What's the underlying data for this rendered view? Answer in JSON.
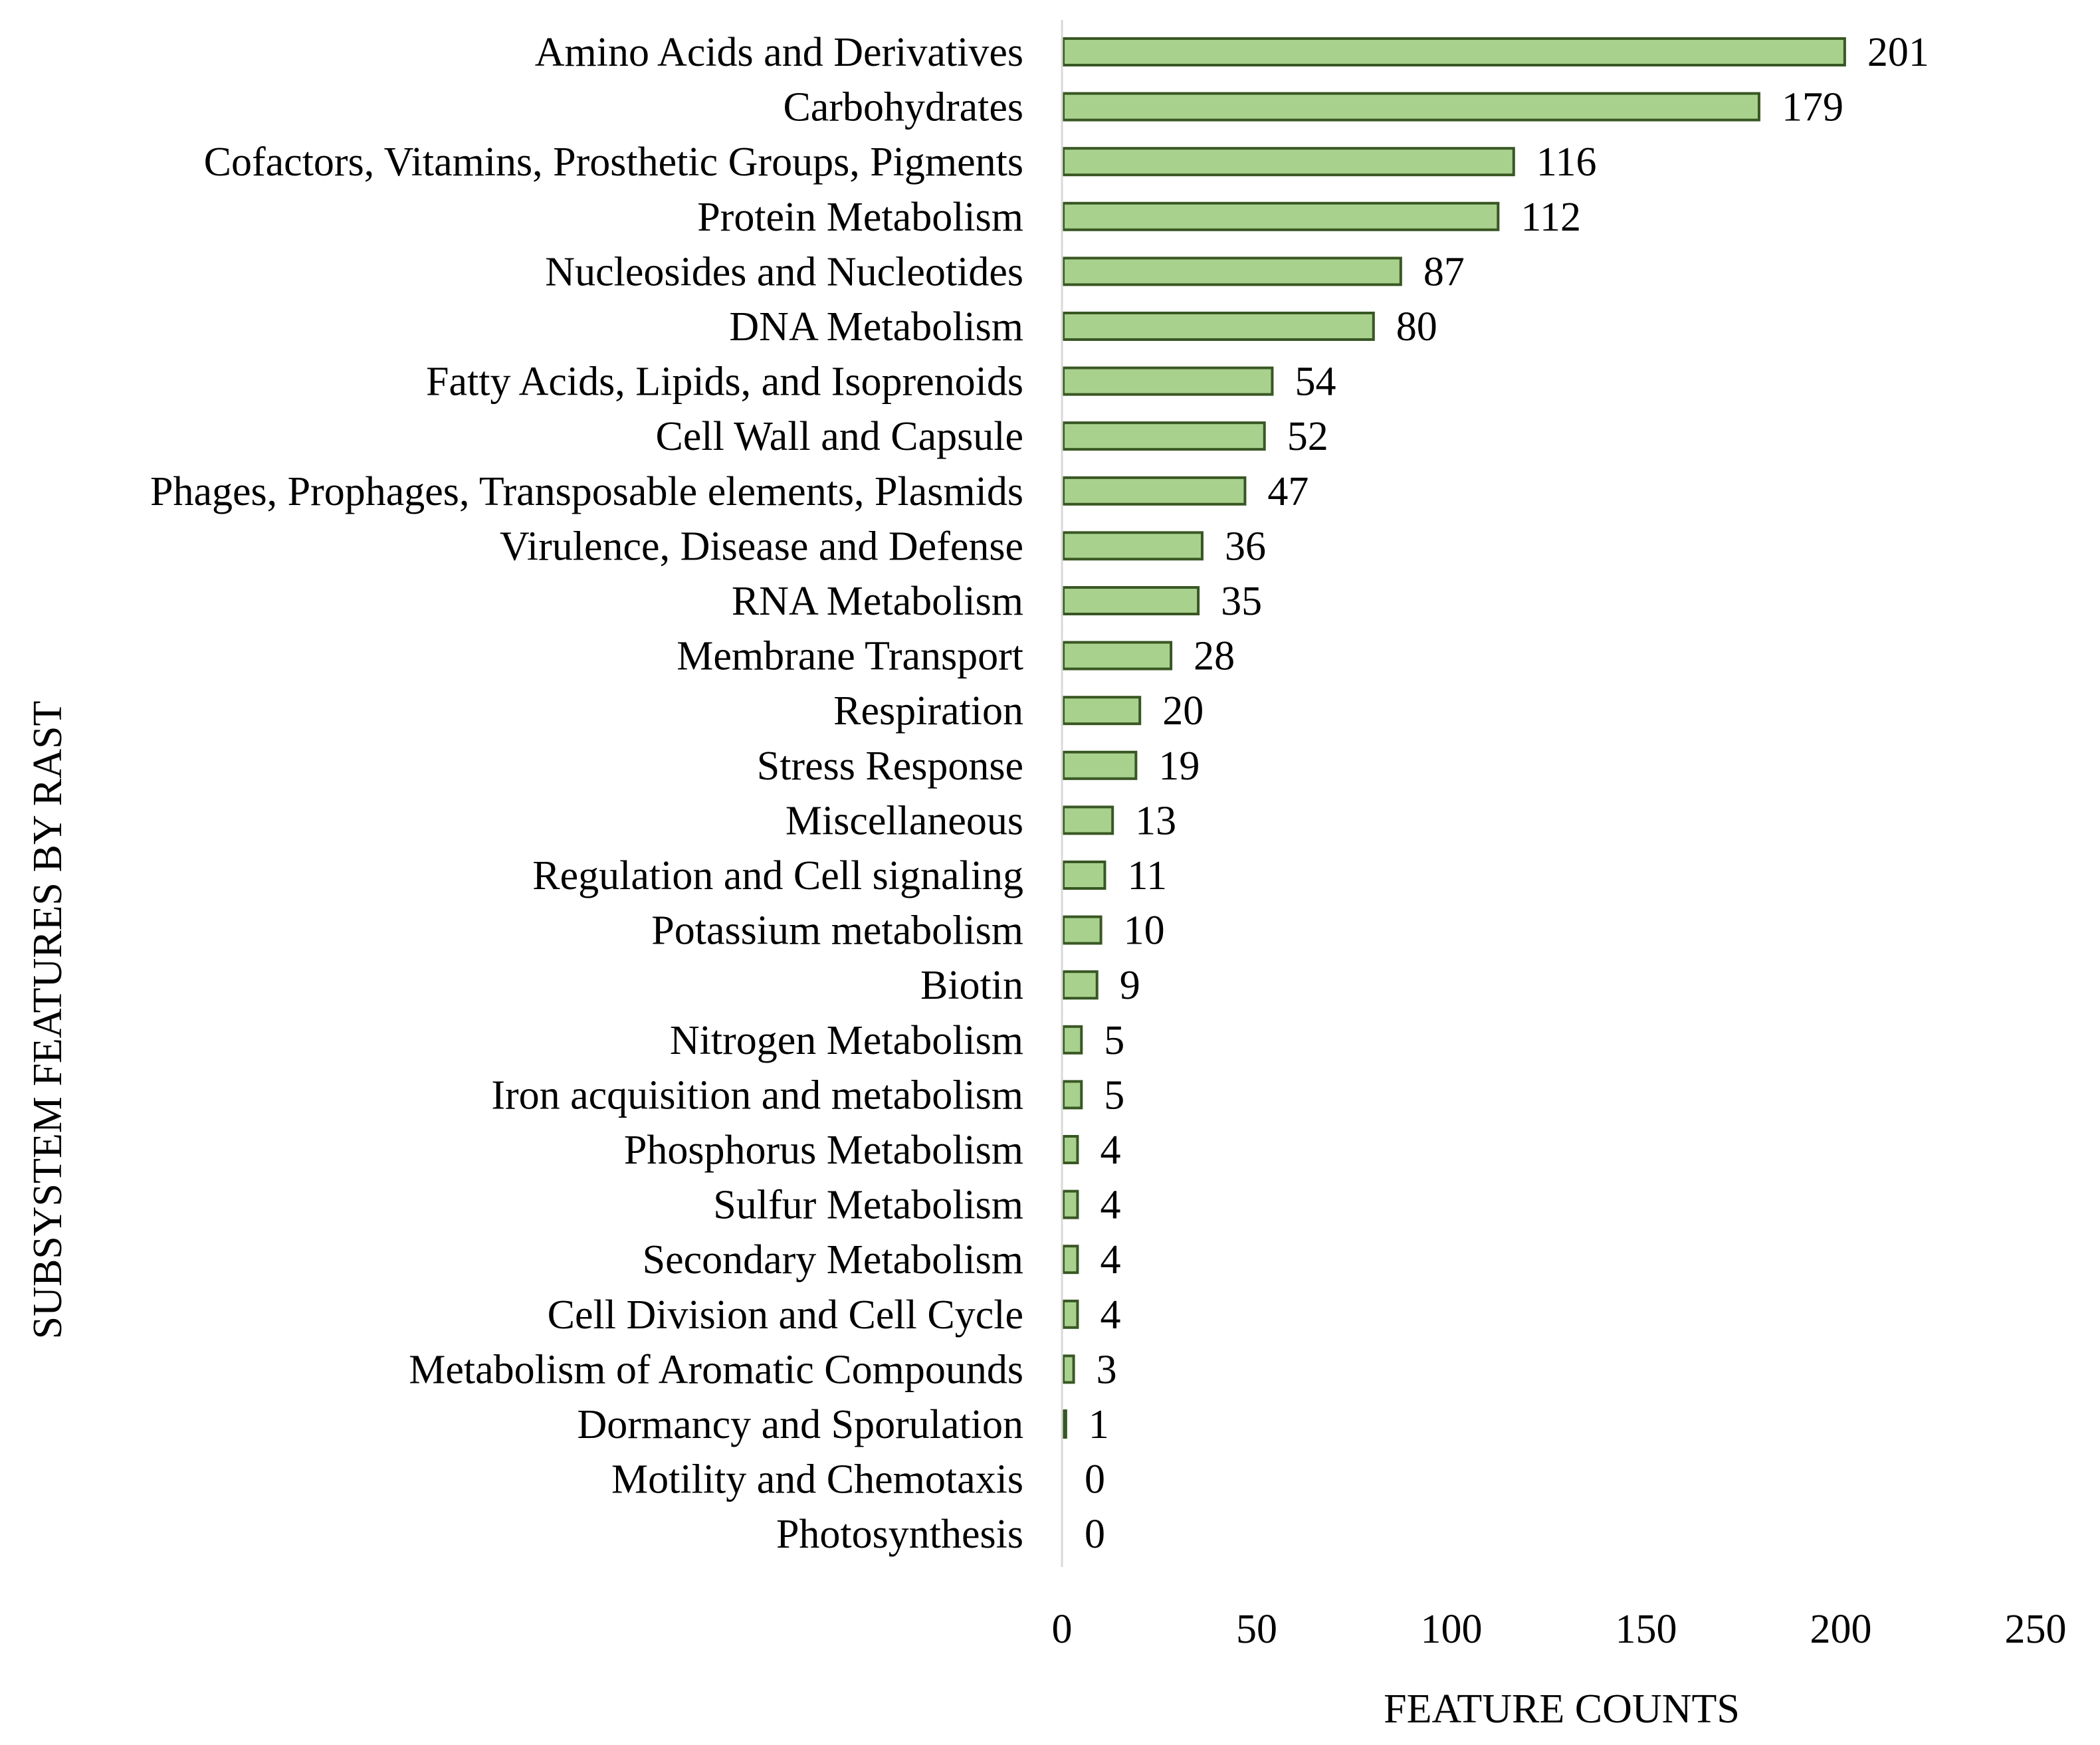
{
  "chart_data": {
    "type": "bar",
    "orientation": "horizontal",
    "xlabel": "FEATURE COUNTS",
    "ylabel": "SUBSYSTEM FEATURES BY RAST",
    "xlim": [
      0,
      250
    ],
    "xticks": [
      0,
      50,
      100,
      150,
      200,
      250
    ],
    "grid": false,
    "legend": "none",
    "colors": {
      "bar_fill": "#a9d18e",
      "bar_edge": "#385723",
      "axis": "#d9d9d9"
    },
    "categories": [
      "Amino Acids and Derivatives",
      "Carbohydrates",
      "Cofactors, Vitamins, Prosthetic Groups, Pigments",
      "Protein Metabolism",
      "Nucleosides and Nucleotides",
      "DNA Metabolism",
      "Fatty Acids, Lipids, and Isoprenoids",
      "Cell Wall and Capsule",
      "Phages, Prophages, Transposable elements, Plasmids",
      "Virulence, Disease and Defense",
      "RNA Metabolism",
      "Membrane Transport",
      "Respiration",
      "Stress Response",
      "Miscellaneous",
      "Regulation and Cell signaling",
      "Potassium metabolism",
      "Biotin",
      "Nitrogen Metabolism",
      "Iron acquisition and metabolism",
      "Phosphorus Metabolism",
      "Sulfur Metabolism",
      "Secondary Metabolism",
      "Cell Division and Cell Cycle",
      "Metabolism of Aromatic Compounds",
      "Dormancy and Sporulation",
      "Motility and Chemotaxis",
      "Photosynthesis"
    ],
    "values": [
      201,
      179,
      116,
      112,
      87,
      80,
      54,
      52,
      47,
      36,
      35,
      28,
      20,
      19,
      13,
      11,
      10,
      9,
      5,
      5,
      4,
      4,
      4,
      4,
      3,
      1,
      0,
      0
    ]
  }
}
